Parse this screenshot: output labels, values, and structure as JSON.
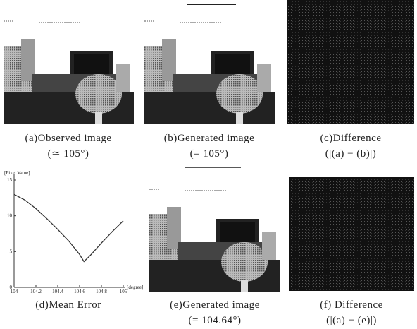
{
  "panels": [
    {
      "label": "(a)Observed image",
      "sub": "(≃ 105°)"
    },
    {
      "label": "(b)Generated image",
      "sub": "(= 105°)"
    },
    {
      "label": "(c)Difference",
      "sub": "(|(a) − (b)|)"
    },
    {
      "label": "(e)Generated image",
      "sub": "(= 104.64°)"
    },
    {
      "label": "(f) Difference",
      "sub": "(|(a) − (e)|)"
    }
  ],
  "chart_data": {
    "type": "line",
    "title": "(d)Mean Error",
    "ylabel": "[Pixel Value]",
    "xlabel": "[degree]",
    "x": [
      104,
      104.1,
      104.2,
      104.3,
      104.4,
      104.5,
      104.6,
      104.64,
      104.7,
      104.8,
      104.9,
      105
    ],
    "series": [
      {
        "color": "#333333",
        "values": [
          13,
          12.2,
          11,
          9.6,
          8.1,
          6.5,
          4.6,
          3.6,
          4.5,
          6.2,
          7.8,
          9.3
        ]
      }
    ],
    "xlim": [
      104,
      105
    ],
    "ylim": [
      0,
      15
    ],
    "xticks": [
      104,
      104.2,
      104.4,
      104.6,
      104.8,
      105
    ],
    "yticks": [
      0,
      5,
      10,
      15
    ]
  }
}
